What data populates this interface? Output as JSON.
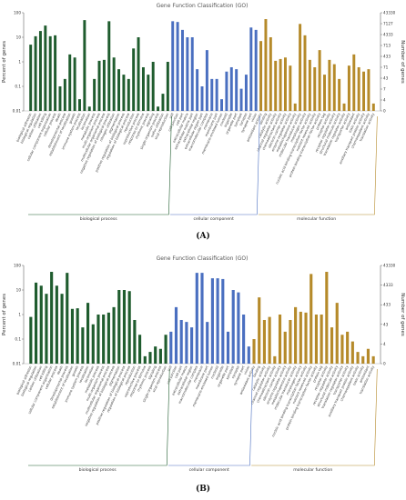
{
  "figure": {
    "label_a": "(A)",
    "label_b": "(B)"
  },
  "chart_data": [
    {
      "type": "bar",
      "panel": "(A)",
      "title": "Gene Function Classification (GO)",
      "ylabel": "Percent of genes",
      "ylabel_right": "Number of genes",
      "y_scale": "log",
      "ylim": [
        0.01,
        100
      ],
      "y_ticks": [
        "100",
        "10",
        "1",
        "0.1",
        "0.01"
      ],
      "right_ticks": [
        "43330",
        "7127",
        "4333",
        "713",
        "433",
        "71",
        "43",
        "7",
        "4",
        "0"
      ],
      "groups": [
        {
          "name": "biological process",
          "color": "#1f5c2e",
          "start": 0,
          "end": 29
        },
        {
          "name": "cellular component",
          "color": "#4a6fc0",
          "start": 29,
          "end": 47
        },
        {
          "name": "molecular function",
          "color": "#b58a2a",
          "start": 47,
          "end": 71
        }
      ],
      "categories": [
        "biological adhesion",
        "biological regulation",
        "carbon utilization",
        "cell killing",
        "cellular component organization",
        "cellular process",
        "death",
        "developmental process",
        "establishment of localization",
        "growth",
        "immune system process",
        "localization",
        "locomotion",
        "metabolic process",
        "multi-organism process",
        "multicellular organismal process",
        "negative regulation of biological process",
        "nitrogen utilization",
        "pigmentation",
        "positive regulation of biological process",
        "regulation of biological process",
        "reproduction",
        "reproductive process",
        "response to stimulus",
        "rhythmic process",
        "signaling",
        "single-organism process",
        "sulfur utilization",
        "viral reproduction",
        "cell",
        "cell junction",
        "cell part",
        "extracellular matrix",
        "extracellular matrix part",
        "extracellular region",
        "extracellular region part",
        "macromolecular complex",
        "membrane",
        "membrane part",
        "membrane-enclosed lumen",
        "nucleoid",
        "organelle",
        "organelle part",
        "symplast",
        "synapse",
        "synapse part",
        "virion",
        "antioxidant activity",
        "binding",
        "catalytic activity",
        "channel regulator activity",
        "chemoattractant activity",
        "electron carrier activity",
        "enzyme regulator activity",
        "metallochaperone activity",
        "molecular transducer activity",
        "morphogen activity",
        "nucleic acid binding transcription factor activity",
        "nutrient reservoir activity",
        "protein binding transcription factor activity",
        "protein tag",
        "receptor activity",
        "receptor regulator activity",
        "structural molecule activity",
        "translation regulator activity",
        "transporter activity",
        "antioxidant",
        "toxin activity",
        "auxiliary transport protein activity",
        "chemorepellent activity",
        "translation activity"
      ],
      "values": [
        5,
        11,
        18,
        30,
        11,
        12,
        0.1,
        0.2,
        2,
        1.5,
        0.03,
        50,
        0.015,
        0.2,
        1.1,
        1.2,
        45,
        1.5,
        0.5,
        0.3,
        0.2,
        3.5,
        10,
        0.6,
        0.3,
        1,
        0.015,
        0.05,
        1,
        45,
        42,
        20,
        10,
        10,
        0.5,
        0.1,
        3,
        0.2,
        0.2,
        0.03,
        0.4,
        0.6,
        0.5,
        0.08,
        0.3,
        25,
        20,
        7,
        55,
        10,
        1.1,
        1.3,
        1.5,
        0.7,
        0.02,
        35,
        12,
        1.2,
        0.6,
        3,
        0.3,
        1.2,
        0.8,
        0.2,
        0.02,
        0.7,
        2,
        0.6,
        0.4,
        0.5,
        0.02
      ]
    },
    {
      "type": "bar",
      "panel": "(B)",
      "title": "Gene Function Classification (GO)",
      "ylabel": "Percent of genes",
      "ylabel_right": "Number of genes",
      "y_scale": "log",
      "ylim": [
        0.01,
        100
      ],
      "y_ticks": [
        "100",
        "10",
        "1",
        "0.1",
        "0.01"
      ],
      "right_ticks": [
        "43330",
        "4333",
        "433",
        "43",
        "4",
        "0"
      ],
      "groups": [
        {
          "name": "biological process",
          "color": "#1f5c2e",
          "start": 0,
          "end": 27
        },
        {
          "name": "cellular component",
          "color": "#4a6fc0",
          "start": 27,
          "end": 43
        },
        {
          "name": "molecular function",
          "color": "#b58a2a",
          "start": 43,
          "end": 67
        }
      ],
      "categories": [
        "biological adhesion",
        "biological regulation",
        "carbon utilization",
        "cell killing",
        "cellular component organization",
        "cellular process",
        "death",
        "developmental process",
        "establishment of localization",
        "growth",
        "immune system process",
        "localization",
        "locomotion",
        "metabolic process",
        "multi-organism process",
        "multicellular organismal process",
        "negative regulation of biological process",
        "pigmentation",
        "positive regulation of biological process",
        "regulation of biological process",
        "reproduction",
        "reproductive process",
        "response to stimulus",
        "rhythmic process",
        "signaling",
        "single-organism process",
        "viral reproduction",
        "cell",
        "cell junction",
        "cell part",
        "extracellular matrix",
        "extracellular region",
        "macromolecular complex",
        "membrane",
        "membrane part",
        "membrane-enclosed lumen",
        "nucleoid",
        "organelle",
        "organelle part",
        "symplast",
        "synapse",
        "synapse part",
        "virion",
        "antioxidant activity",
        "binding",
        "catalytic activity",
        "channel regulator activity",
        "chemoattractant activity",
        "electron carrier activity",
        "enzyme regulator activity",
        "metallochaperone activity",
        "molecular transducer activity",
        "morphogen activity",
        "nucleic acid binding transcription factor activity",
        "nutrient reservoir activity",
        "protein binding transcription factor activity",
        "protein tag",
        "receptor activity",
        "receptor regulator activity",
        "structural molecule activity",
        "translation regulator activity",
        "transporter activity",
        "auxiliary transport protein activity",
        "chemorepellent activity",
        "toxin activity",
        "antioxidant",
        "translation activity"
      ],
      "values": [
        0.8,
        20,
        15,
        7,
        55,
        15,
        7,
        50,
        1.7,
        1.8,
        0.3,
        3,
        0.4,
        1,
        1,
        1.2,
        2,
        10,
        10,
        9,
        0.6,
        0.15,
        0.02,
        0.03,
        0.05,
        0.04,
        0.15,
        0.2,
        2,
        0.6,
        0.5,
        0.3,
        50,
        50,
        0.5,
        30,
        30,
        28,
        0.2,
        10,
        8,
        1,
        0.05,
        0.1,
        5,
        0.6,
        0.8,
        0.02,
        1,
        0.2,
        0.6,
        2,
        1.3,
        1.2,
        45,
        1,
        1,
        55,
        0.3,
        3,
        0.15,
        0.2,
        0.08,
        0.03,
        0.02,
        0.04,
        0.02
      ]
    }
  ]
}
